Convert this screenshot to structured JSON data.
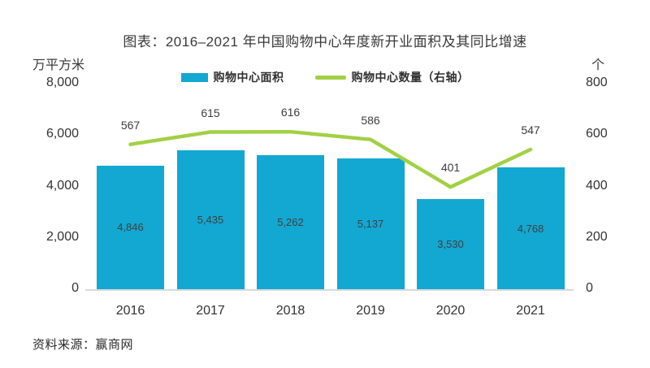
{
  "title": "图表：2016–2021 年中国购物中心年度新开业面积及其同比增速",
  "legend": {
    "items": [
      {
        "label": "购物中心面积",
        "type": "bar"
      },
      {
        "label": "购物中心数量（右轴）",
        "type": "line"
      }
    ]
  },
  "left_axis": {
    "unit": "万平方米",
    "ticks": [
      "8,000",
      "6,000",
      "4,000",
      "2,000",
      "0"
    ]
  },
  "right_axis": {
    "unit": "个",
    "ticks": [
      "800",
      "600",
      "400",
      "200",
      "0"
    ]
  },
  "source": "资料来源：赢商网",
  "colors": {
    "bar": "#12a8d2",
    "line": "#a2d045",
    "axis_line": "#d9d9d9"
  },
  "chart_data": {
    "type": "bar",
    "subtype": "bar+line combo",
    "title": "图表：2016–2021 年中国购物中心年度新开业面积及其同比增速",
    "categories": [
      "2016",
      "2017",
      "2018",
      "2019",
      "2020",
      "2021"
    ],
    "series": [
      {
        "name": "购物中心面积",
        "type": "bar",
        "axis": "left",
        "unit": "万平方米",
        "values": [
          4846,
          5435,
          5262,
          5137,
          3530,
          4768
        ],
        "labels": [
          "4,846",
          "5,435",
          "5,262",
          "5,137",
          "3,530",
          "4,768"
        ],
        "color": "#12a8d2"
      },
      {
        "name": "购物中心数量（右轴）",
        "type": "line",
        "axis": "right",
        "unit": "个",
        "values": [
          567,
          615,
          616,
          586,
          401,
          547
        ],
        "labels": [
          "567",
          "615",
          "616",
          "586",
          "401",
          "547"
        ],
        "color": "#a2d045"
      }
    ],
    "left_ylim": [
      0,
      8000
    ],
    "right_ylim": [
      0,
      800
    ],
    "grid": false,
    "legend_position": "top",
    "value_labels": "bars: centered inside; line: above points"
  }
}
